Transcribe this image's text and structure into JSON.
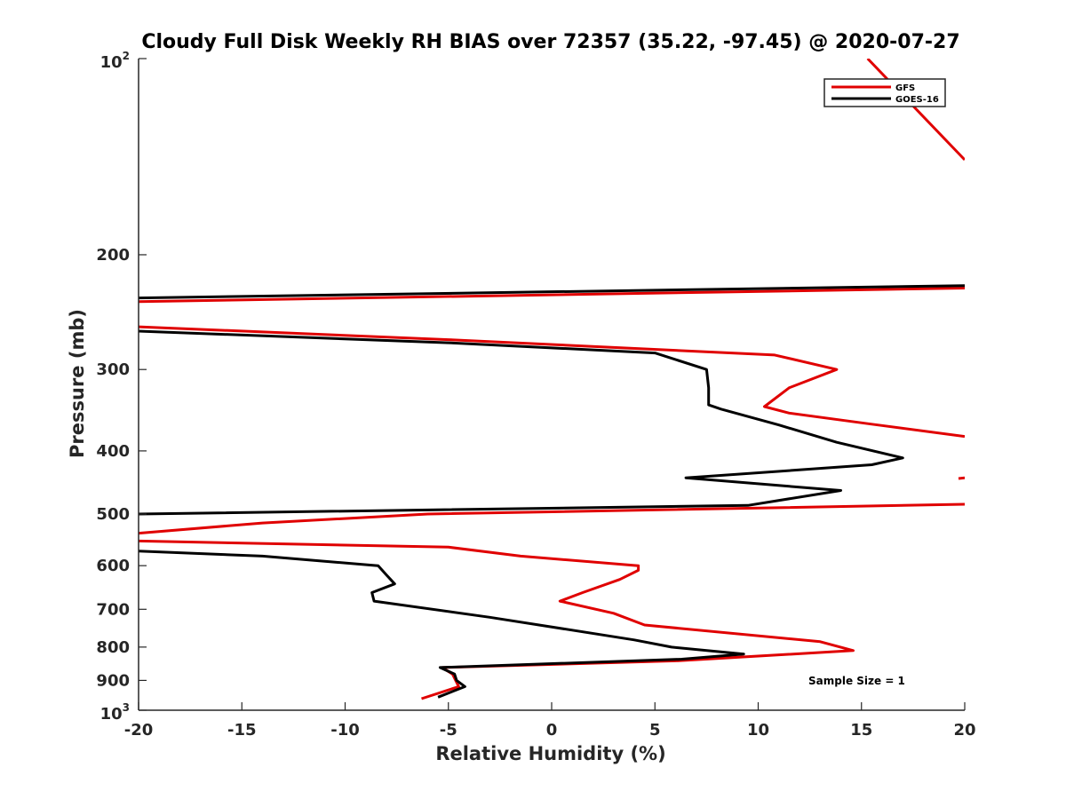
{
  "chart_data": {
    "type": "line",
    "title": "Cloudy Full Disk Weekly RH BIAS over 72357 (35.22, -97.45) @ 2020-07-27",
    "xlabel": "Relative Humidity (%)",
    "ylabel": "Pressure (mb)",
    "xlim": [
      -20,
      20
    ],
    "ylim": [
      100,
      1000
    ],
    "yscale": "log",
    "y_reversed": true,
    "grid": false,
    "legend_position": "top-right",
    "x_ticks": [
      "-20",
      "-15",
      "-10",
      "-5",
      "0",
      "5",
      "10",
      "15",
      "20"
    ],
    "y_ticks": [
      {
        "value": 100,
        "base": "10",
        "exp": "2"
      },
      {
        "value": 200,
        "label": "200"
      },
      {
        "value": 300,
        "label": "300"
      },
      {
        "value": 400,
        "label": "400"
      },
      {
        "value": 500,
        "label": "500"
      },
      {
        "value": 600,
        "label": "600"
      },
      {
        "value": 700,
        "label": "700"
      },
      {
        "value": 800,
        "label": "800"
      },
      {
        "value": 900,
        "label": "900"
      },
      {
        "value": 1000,
        "base": "10",
        "exp": "3"
      }
    ],
    "annotation": "Sample Size = 1",
    "series": [
      {
        "name": "GFS",
        "color": "#e00000",
        "segments": [
          [
            [
              15.3,
              100
            ],
            [
              20,
              143
            ]
          ],
          [
            [
              20,
              225
            ],
            [
              -20,
              236
            ]
          ],
          [
            [
              -20,
              258
            ],
            [
              -5,
              270
            ],
            [
              10.8,
              285
            ],
            [
              13.8,
              300
            ],
            [
              11.5,
              320
            ],
            [
              10.3,
              342
            ],
            [
              11.5,
              350
            ],
            [
              15.5,
              364
            ],
            [
              20,
              380
            ]
          ],
          [
            [
              19.7,
              441
            ],
            [
              20,
              440
            ]
          ],
          [
            [
              20,
              483
            ],
            [
              -6,
              500
            ],
            [
              -14,
              516
            ],
            [
              -20,
              535
            ]
          ],
          [
            [
              -20,
              550
            ],
            [
              -5,
              562
            ],
            [
              -1.5,
              580
            ],
            [
              4.2,
              600
            ],
            [
              4.2,
              610
            ],
            [
              3.3,
              630
            ],
            [
              1.5,
              660
            ],
            [
              0.4,
              680
            ],
            [
              3,
              710
            ],
            [
              4.5,
              740
            ],
            [
              13,
              785
            ],
            [
              14.6,
              810
            ],
            [
              6,
              840
            ],
            [
              -5.3,
              860
            ],
            [
              -4.8,
              880
            ],
            [
              -4.5,
              920
            ],
            [
              -6.3,
              960
            ]
          ]
        ]
      },
      {
        "name": "GOES-16",
        "color": "#000000",
        "segments": [
          [
            [
              20,
              223
            ],
            [
              -20,
              233
            ]
          ],
          [
            [
              -20,
              262
            ],
            [
              -5,
              273
            ],
            [
              5,
              283
            ],
            [
              7.5,
              300
            ],
            [
              7.6,
              320
            ],
            [
              7.6,
              340
            ],
            [
              8.2,
              345
            ],
            [
              11,
              365
            ],
            [
              13.8,
              388
            ],
            [
              17,
              410
            ],
            [
              15.5,
              420
            ],
            [
              6.5,
              440
            ],
            [
              14,
              460
            ],
            [
              9.5,
              485
            ],
            [
              -20,
              500
            ]
          ],
          [
            [
              -20,
              570
            ],
            [
              -14,
              580
            ],
            [
              -8.4,
              600
            ],
            [
              -8,
              620
            ],
            [
              -7.6,
              640
            ],
            [
              -8.7,
              660
            ],
            [
              -8.6,
              680
            ],
            [
              -3,
              720
            ],
            [
              4,
              780
            ],
            [
              5.8,
              800
            ],
            [
              9.3,
              820
            ],
            [
              6.3,
              835
            ],
            [
              -5.4,
              860
            ],
            [
              -4.7,
              880
            ],
            [
              -4.6,
              900
            ],
            [
              -4.2,
              920
            ],
            [
              -5.5,
              955
            ]
          ]
        ]
      }
    ]
  }
}
